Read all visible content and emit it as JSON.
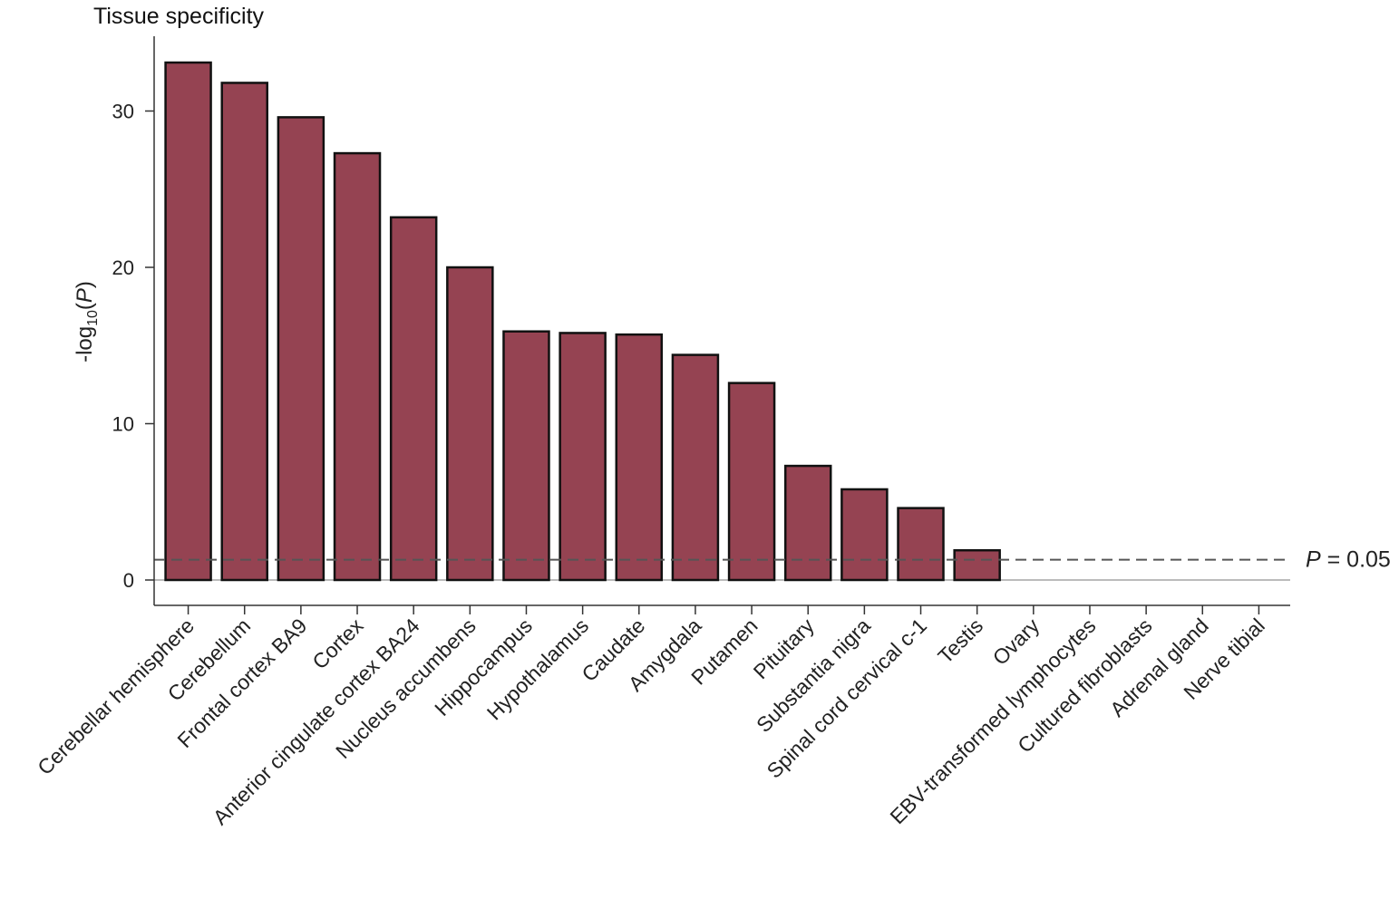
{
  "chart_data": {
    "type": "bar",
    "title": "Tissue specificity",
    "ylabel": {
      "prefix": "-log",
      "subscript": "10",
      "paren_open": "(",
      "var": "P",
      "paren_close": ")"
    },
    "xlabel": "",
    "ylim": [
      -1.7,
      34
    ],
    "yticks": [
      0,
      10,
      20,
      30
    ],
    "categories": [
      "Cerebellar hemisphere",
      "Cerebellum",
      "Frontal cortex BA9",
      "Cortex",
      "Anterior cingulate cortex BA24",
      "Nucleus accumbens",
      "Hippocampus",
      "Hypothalamus",
      "Caudate",
      "Amygdala",
      "Putamen",
      "Pituitary",
      "Substantia nigra",
      "Spinal cord cervical c-1",
      "Testis",
      "Ovary",
      "EBV-transformed lymphocytes",
      "Cultured fibroblasts",
      "Adrenal gland",
      "Nerve tibial"
    ],
    "values": [
      33.1,
      31.8,
      29.6,
      27.3,
      23.2,
      20.0,
      15.9,
      15.8,
      15.7,
      14.4,
      12.6,
      7.3,
      5.8,
      4.6,
      1.9,
      0,
      0,
      0,
      0,
      0
    ],
    "threshold": {
      "value": 1.3,
      "label_var": "P",
      "label_rest": " = 0.05",
      "style": "dashed"
    },
    "colors": {
      "bar": "#954352",
      "bar_edge": "#111111",
      "threshold": "#555555",
      "zero_line": "#bbbbbb",
      "axis": "#333333"
    },
    "grid": false,
    "legend": "none"
  }
}
